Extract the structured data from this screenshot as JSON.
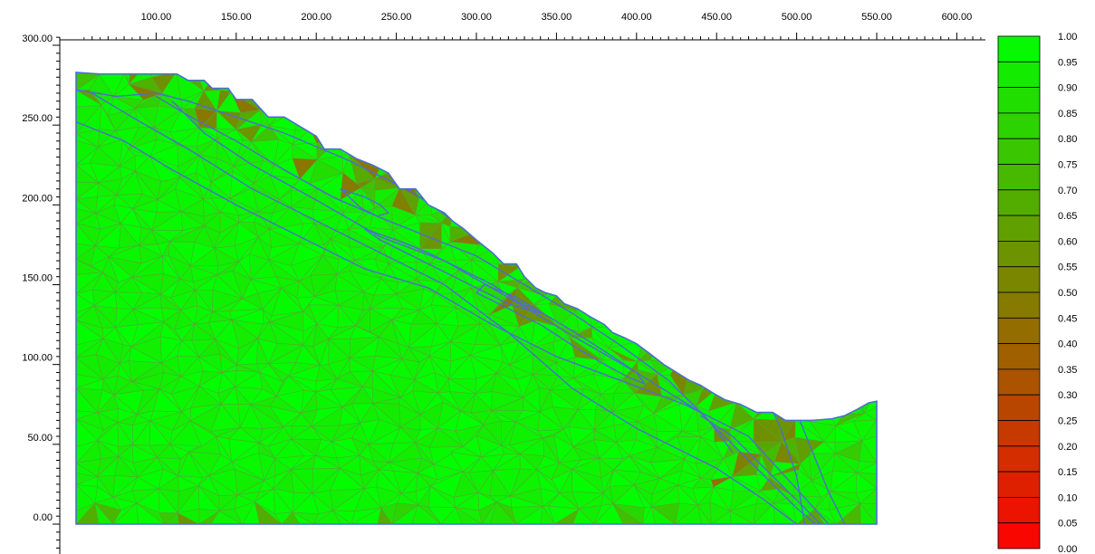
{
  "chart_data": {
    "type": "heatmap",
    "description_kind": "finite-element mesh contour on slope cross-section",
    "x_axis": {
      "range": [
        40,
        640
      ],
      "major_ticks": [
        100,
        150,
        200,
        250,
        300,
        350,
        400,
        450,
        500,
        550,
        600
      ],
      "tick_labels": [
        "100.00",
        "150.00",
        "200.00",
        "250.00",
        "300.00",
        "350.00",
        "400.00",
        "450.00",
        "500.00",
        "550.00",
        "600.00"
      ],
      "minor_step": 10
    },
    "y_axis": {
      "range": [
        -15,
        305
      ],
      "major_ticks": [
        0,
        50,
        100,
        150,
        200,
        250,
        300
      ],
      "tick_labels": [
        "0.00",
        "50.00",
        "100.00",
        "150.00",
        "200.00",
        "250.00",
        "300.00"
      ],
      "minor_step": 5
    },
    "legend": {
      "placement": "right",
      "values": [
        1.0,
        0.95,
        0.9,
        0.85,
        0.8,
        0.75,
        0.7,
        0.65,
        0.6,
        0.55,
        0.5,
        0.45,
        0.4,
        0.35,
        0.3,
        0.25,
        0.2,
        0.15,
        0.1,
        0.05,
        0.0
      ],
      "labels": [
        "1.00",
        "0.95",
        "0.90",
        "0.85",
        "0.80",
        "0.75",
        "0.70",
        "0.65",
        "0.60",
        "0.55",
        "0.50",
        "0.45",
        "0.40",
        "0.35",
        "0.30",
        "0.25",
        "0.20",
        "0.15",
        "0.10",
        "0.05",
        "0.00"
      ],
      "color_high": "#00ff00",
      "color_mid": "#808000",
      "color_low": "#ff0000"
    },
    "ground_surface": [
      [
        50,
        283
      ],
      [
        65,
        282
      ],
      [
        80,
        282
      ],
      [
        90,
        282
      ],
      [
        100,
        282
      ],
      [
        113,
        282
      ],
      [
        120,
        278
      ],
      [
        130,
        278
      ],
      [
        135,
        273
      ],
      [
        145,
        273
      ],
      [
        150,
        266
      ],
      [
        160,
        266
      ],
      [
        170,
        255
      ],
      [
        180,
        255
      ],
      [
        190,
        249
      ],
      [
        200,
        243
      ],
      [
        205,
        235
      ],
      [
        215,
        235
      ],
      [
        225,
        229
      ],
      [
        235,
        225
      ],
      [
        245,
        220
      ],
      [
        252,
        210
      ],
      [
        262,
        210
      ],
      [
        270,
        200
      ],
      [
        280,
        195
      ],
      [
        285,
        190
      ],
      [
        292,
        185
      ],
      [
        300,
        178
      ],
      [
        310,
        170
      ],
      [
        317,
        163
      ],
      [
        325,
        163
      ],
      [
        330,
        155
      ],
      [
        337,
        148
      ],
      [
        343,
        145
      ],
      [
        350,
        143
      ],
      [
        355,
        138
      ],
      [
        363,
        135
      ],
      [
        371,
        130
      ],
      [
        380,
        125
      ],
      [
        385,
        120
      ],
      [
        392,
        117
      ],
      [
        400,
        113
      ],
      [
        408,
        107
      ],
      [
        417,
        100
      ],
      [
        425,
        95
      ],
      [
        433,
        90
      ],
      [
        440,
        87
      ],
      [
        448,
        82
      ],
      [
        455,
        78
      ],
      [
        465,
        75
      ],
      [
        475,
        70
      ],
      [
        485,
        70
      ],
      [
        493,
        65
      ],
      [
        502,
        65
      ],
      [
        510,
        65
      ],
      [
        522,
        66
      ],
      [
        530,
        68
      ],
      [
        538,
        72
      ],
      [
        545,
        76
      ],
      [
        550,
        77
      ]
    ],
    "base_y": 0,
    "left_x": 50,
    "right_x": 550,
    "layer_boundaries": [
      [
        [
          50,
          272
        ],
        [
          75,
          268
        ],
        [
          100,
          270
        ],
        [
          120,
          265
        ],
        [
          150,
          255
        ],
        [
          180,
          245
        ],
        [
          220,
          228
        ],
        [
          260,
          208
        ],
        [
          300,
          180
        ],
        [
          350,
          150
        ],
        [
          400,
          120
        ],
        [
          450,
          90
        ],
        [
          490,
          72
        ]
      ],
      [
        [
          50,
          252
        ],
        [
          80,
          240
        ],
        [
          110,
          222
        ],
        [
          150,
          200
        ],
        [
          190,
          180
        ],
        [
          230,
          160
        ],
        [
          270,
          148
        ],
        [
          310,
          125
        ],
        [
          350,
          105
        ],
        [
          390,
          90
        ],
        [
          430,
          75
        ],
        [
          470,
          55
        ],
        [
          520,
          0
        ]
      ],
      [
        [
          60,
          270
        ],
        [
          90,
          252
        ],
        [
          120,
          235
        ],
        [
          160,
          210
        ],
        [
          200,
          190
        ],
        [
          240,
          170
        ],
        [
          280,
          150
        ],
        [
          320,
          120
        ],
        [
          360,
          85
        ],
        [
          400,
          60
        ],
        [
          450,
          35
        ],
        [
          480,
          15
        ],
        [
          500,
          0
        ]
      ],
      [
        [
          110,
          265
        ],
        [
          130,
          245
        ],
        [
          160,
          225
        ],
        [
          200,
          203
        ],
        [
          240,
          180
        ],
        [
          280,
          165
        ],
        [
          320,
          142
        ],
        [
          360,
          118
        ],
        [
          400,
          95
        ],
        [
          440,
          70
        ],
        [
          470,
          40
        ],
        [
          500,
          10
        ],
        [
          512,
          0
        ]
      ],
      [
        [
          100,
          268
        ],
        [
          120,
          256
        ],
        [
          150,
          240
        ],
        [
          180,
          222
        ],
        [
          210,
          205
        ],
        [
          240,
          192
        ],
        [
          270,
          180
        ],
        [
          300,
          168
        ],
        [
          330,
          150
        ],
        [
          360,
          132
        ],
        [
          390,
          112
        ],
        [
          420,
          90
        ],
        [
          445,
          65
        ],
        [
          460,
          45
        ]
      ],
      [
        [
          300,
          145
        ],
        [
          320,
          135
        ],
        [
          340,
          125
        ],
        [
          360,
          112
        ],
        [
          380,
          100
        ],
        [
          395,
          92
        ],
        [
          405,
          88
        ],
        [
          400,
          95
        ],
        [
          385,
          105
        ],
        [
          365,
          118
        ],
        [
          345,
          130
        ],
        [
          325,
          142
        ],
        [
          305,
          150
        ],
        [
          300,
          145
        ]
      ],
      [
        [
          230,
          185
        ],
        [
          250,
          178
        ],
        [
          270,
          170
        ],
        [
          290,
          160
        ],
        [
          310,
          150
        ],
        [
          325,
          140
        ],
        [
          340,
          132
        ],
        [
          320,
          138
        ],
        [
          300,
          148
        ],
        [
          280,
          158
        ],
        [
          260,
          168
        ],
        [
          240,
          178
        ],
        [
          230,
          185
        ]
      ],
      [
        [
          215,
          210
        ],
        [
          230,
          205
        ],
        [
          240,
          200
        ],
        [
          245,
          195
        ],
        [
          238,
          193
        ],
        [
          228,
          198
        ],
        [
          215,
          210
        ]
      ],
      [
        [
          480,
          82
        ],
        [
          490,
          60
        ],
        [
          500,
          30
        ],
        [
          505,
          0
        ]
      ],
      [
        [
          490,
          90
        ],
        [
          500,
          70
        ],
        [
          510,
          45
        ],
        [
          520,
          20
        ],
        [
          530,
          0
        ]
      ],
      [
        [
          440,
          68
        ],
        [
          460,
          55
        ],
        [
          480,
          35
        ],
        [
          500,
          15
        ],
        [
          515,
          0
        ]
      ]
    ]
  }
}
